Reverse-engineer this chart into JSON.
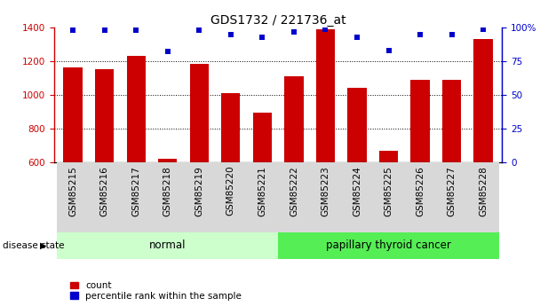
{
  "title": "GDS1732 / 221736_at",
  "samples": [
    "GSM85215",
    "GSM85216",
    "GSM85217",
    "GSM85218",
    "GSM85219",
    "GSM85220",
    "GSM85221",
    "GSM85222",
    "GSM85223",
    "GSM85224",
    "GSM85225",
    "GSM85226",
    "GSM85227",
    "GSM85228"
  ],
  "counts": [
    1165,
    1155,
    1230,
    620,
    1185,
    1010,
    895,
    1110,
    1390,
    1040,
    670,
    1090,
    1090,
    1330
  ],
  "percentiles": [
    98,
    98,
    98,
    82,
    98,
    95,
    93,
    97,
    99,
    93,
    83,
    95,
    95,
    99
  ],
  "bar_color": "#cc0000",
  "dot_color": "#0000cc",
  "ylim_left": [
    600,
    1400
  ],
  "ylim_right": [
    0,
    100
  ],
  "yticks_left": [
    600,
    800,
    1000,
    1200,
    1400
  ],
  "yticks_right": [
    0,
    25,
    50,
    75,
    100
  ],
  "ytick_labels_right": [
    "0",
    "25",
    "50",
    "75",
    "100%"
  ],
  "normal_label": "normal",
  "cancer_label": "papillary thyroid cancer",
  "disease_state_label": "disease state",
  "normal_color": "#ccffcc",
  "cancer_color": "#55ee55",
  "legend_count_label": "count",
  "legend_pct_label": "percentile rank within the sample",
  "title_fontsize": 10,
  "tick_fontsize": 7.5
}
